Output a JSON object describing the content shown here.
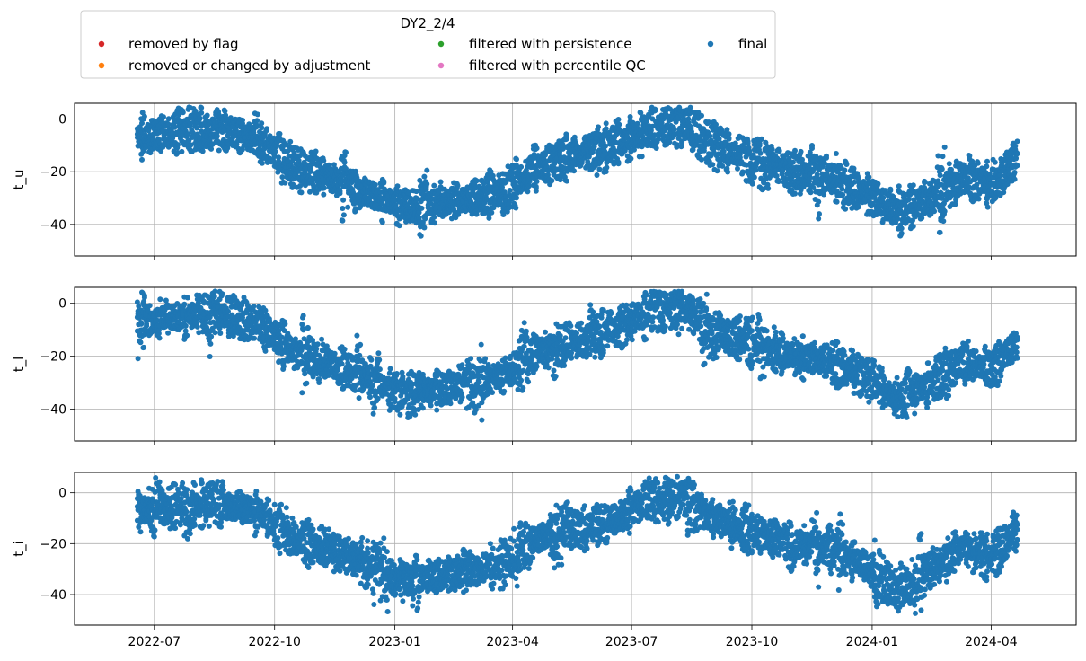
{
  "chart_data": {
    "type": "scatter",
    "legend": {
      "title": "DY2_2/4",
      "placement": "top-left",
      "entries": [
        {
          "label": "removed by flag",
          "color": "#d62728"
        },
        {
          "label": "removed or changed by adjustment",
          "color": "#ff7f0e"
        },
        {
          "label": "filtered with persistence",
          "color": "#2ca02c"
        },
        {
          "label": "filtered with percentile QC",
          "color": "#e377c2"
        },
        {
          "label": "final",
          "color": "#1f77b4"
        }
      ]
    },
    "x_range": [
      "2022-05-01",
      "2024-06-05"
    ],
    "x_ticks": [
      "2022-07",
      "2022-10",
      "2023-01",
      "2023-04",
      "2023-07",
      "2023-10",
      "2024-01",
      "2024-04"
    ],
    "grid": true,
    "panels": [
      {
        "ylabel": "t_u",
        "ylim": [
          -52,
          6
        ],
        "y_ticks": [
          0,
          -20,
          -40
        ],
        "series": [
          {
            "color": "#1f77b4",
            "x": [
              "2022-06-18",
              "2022-07-20",
              "2022-08-20",
              "2022-09-20",
              "2022-10-15",
              "2022-11-10",
              "2022-12-10",
              "2023-01-05",
              "2023-02-01",
              "2023-03-01",
              "2023-03-25",
              "2023-04-20",
              "2023-05-20",
              "2023-06-20",
              "2023-07-15",
              "2023-08-10",
              "2023-09-01",
              "2023-10-01",
              "2023-11-01",
              "2023-12-01",
              "2023-12-25",
              "2024-01-20",
              "2024-02-15",
              "2024-03-10",
              "2024-04-01",
              "2024-04-21"
            ],
            "y": [
              -7,
              -5,
              -4,
              -8,
              -18,
              -22,
              -28,
              -33,
              -32,
              -30,
              -28,
              -18,
              -14,
              -10,
              -3,
              -2,
              -10,
              -15,
              -20,
              -22,
              -28,
              -35,
              -30,
              -22,
              -25,
              -15
            ]
          }
        ]
      },
      {
        "ylabel": "t_l",
        "ylim": [
          -52,
          6
        ],
        "y_ticks": [
          0,
          -20,
          -40
        ],
        "series": [
          {
            "color": "#1f77b4",
            "x": [
              "2022-06-18",
              "2022-07-20",
              "2022-08-20",
              "2022-09-20",
              "2022-10-15",
              "2022-11-10",
              "2022-12-10",
              "2023-01-05",
              "2023-02-01",
              "2023-03-01",
              "2023-03-25",
              "2023-04-20",
              "2023-05-20",
              "2023-06-20",
              "2023-07-15",
              "2023-08-10",
              "2023-09-01",
              "2023-10-01",
              "2023-11-01",
              "2023-12-01",
              "2023-12-25",
              "2024-01-20",
              "2024-02-15",
              "2024-03-10",
              "2024-04-01",
              "2024-04-21"
            ],
            "y": [
              -7,
              -5,
              -4,
              -8,
              -18,
              -22,
              -28,
              -34,
              -33,
              -30,
              -28,
              -18,
              -14,
              -10,
              -3,
              -2,
              -10,
              -15,
              -20,
              -22,
              -28,
              -36,
              -30,
              -22,
              -25,
              -15
            ]
          }
        ]
      },
      {
        "ylabel": "t_i",
        "ylim": [
          -52,
          8
        ],
        "y_ticks": [
          0,
          -20,
          -40
        ],
        "series": [
          {
            "color": "#1f77b4",
            "x": [
              "2022-06-18",
              "2022-07-20",
              "2022-08-20",
              "2022-09-20",
              "2022-10-15",
              "2022-11-10",
              "2022-12-10",
              "2023-01-05",
              "2023-02-01",
              "2023-03-01",
              "2023-03-25",
              "2023-04-20",
              "2023-05-20",
              "2023-06-20",
              "2023-07-15",
              "2023-08-10",
              "2023-09-01",
              "2023-10-01",
              "2023-11-01",
              "2023-12-01",
              "2023-12-25",
              "2024-01-20",
              "2024-02-15",
              "2024-03-10",
              "2024-04-01",
              "2024-04-21"
            ],
            "y": [
              -7,
              -5,
              -4,
              -8,
              -18,
              -22,
              -28,
              -35,
              -33,
              -30,
              -28,
              -18,
              -14,
              -10,
              -3,
              -2,
              -10,
              -15,
              -20,
              -22,
              -28,
              -38,
              -30,
              -22,
              -25,
              -15
            ]
          }
        ]
      }
    ]
  }
}
